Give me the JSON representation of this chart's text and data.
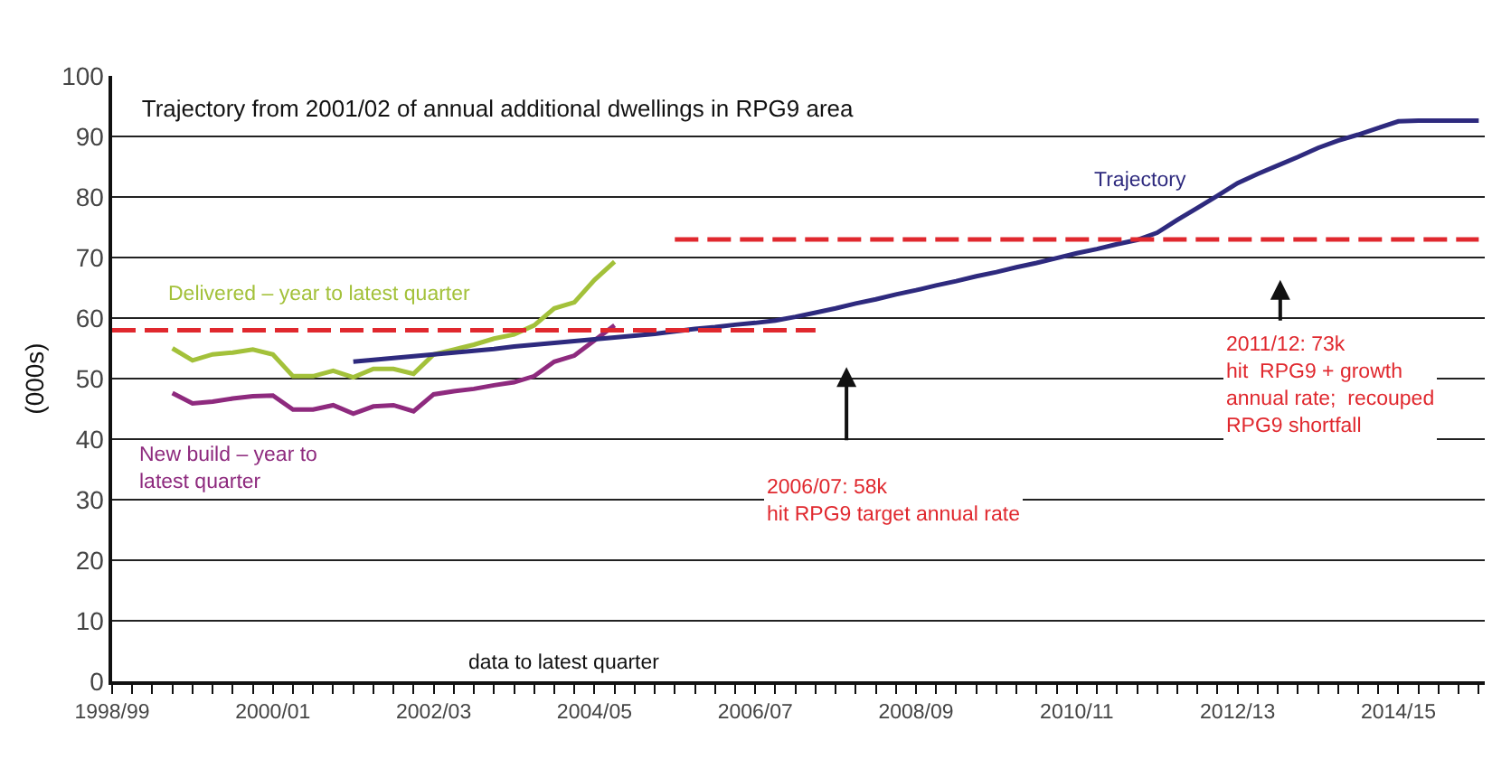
{
  "chart_data": {
    "type": "line",
    "title": "Trajectory from 2001/02 of annual additional dwellings in RPG9 area",
    "ylabel": "(000s)",
    "categories": [
      "1998/99",
      null,
      null,
      null,
      null,
      null,
      null,
      null,
      "2000/01",
      null,
      null,
      null,
      null,
      null,
      null,
      null,
      "2002/03",
      null,
      null,
      null,
      null,
      null,
      null,
      null,
      "2004/05",
      null,
      null,
      null,
      null,
      null,
      null,
      null,
      "2006/07",
      null,
      null,
      null,
      null,
      null,
      null,
      null,
      "2008/09",
      null,
      null,
      null,
      null,
      null,
      null,
      null,
      "2010/11",
      null,
      null,
      null,
      null,
      null,
      null,
      null,
      "2012/13",
      null,
      null,
      null,
      null,
      null,
      null,
      null,
      "2014/15",
      null,
      null,
      null,
      null
    ],
    "ylim": [
      0,
      100
    ],
    "yticks": [
      0,
      10,
      20,
      30,
      40,
      50,
      60,
      70,
      80,
      90,
      100
    ],
    "grid": "y",
    "legend": false,
    "marker": "none",
    "line_style": "solid",
    "series": [
      {
        "name": "Delivered – year to latest quarter",
        "color": "#a3c13a",
        "values": [
          null,
          null,
          null,
          55.0,
          53.0,
          54.0,
          54.3,
          54.8,
          54.0,
          50.4,
          50.4,
          51.3,
          50.2,
          51.6,
          51.6,
          50.8,
          54.0,
          54.8,
          55.6,
          56.6,
          57.3,
          58.8,
          61.6,
          62.6,
          66.3,
          69.3,
          null,
          null,
          null,
          null,
          null,
          null,
          null,
          null,
          null,
          null,
          null,
          null,
          null,
          null,
          null,
          null,
          null,
          null,
          null,
          null,
          null,
          null,
          null,
          null,
          null,
          null,
          null,
          null,
          null,
          null,
          null,
          null,
          null,
          null,
          null,
          null,
          null,
          null,
          null,
          null,
          null,
          null,
          null
        ]
      },
      {
        "name": "New build – year to\nlatest quarter",
        "color": "#8e2a7e",
        "values": [
          null,
          null,
          null,
          47.6,
          45.9,
          46.2,
          46.7,
          47.1,
          47.2,
          44.9,
          44.9,
          45.6,
          44.2,
          45.4,
          45.6,
          44.6,
          47.4,
          47.9,
          48.3,
          48.9,
          49.4,
          50.4,
          52.8,
          53.8,
          56.3,
          58.8,
          null,
          null,
          null,
          null,
          null,
          null,
          null,
          null,
          null,
          null,
          null,
          null,
          null,
          null,
          null,
          null,
          null,
          null,
          null,
          null,
          null,
          null,
          null,
          null,
          null,
          null,
          null,
          null,
          null,
          null,
          null,
          null,
          null,
          null,
          null,
          null,
          null,
          null,
          null,
          null,
          null,
          null,
          null
        ]
      },
      {
        "name": "Trajectory",
        "color": "#2e2a7e",
        "values": [
          null,
          null,
          null,
          null,
          null,
          null,
          null,
          null,
          null,
          null,
          null,
          null,
          52.8,
          53.1,
          53.4,
          53.7,
          54.0,
          54.3,
          54.6,
          54.9,
          55.3,
          55.6,
          55.9,
          56.2,
          56.5,
          56.8,
          57.1,
          57.4,
          57.8,
          58.2,
          58.5,
          58.9,
          59.2,
          59.6,
          60.2,
          60.9,
          61.6,
          62.4,
          63.1,
          63.9,
          64.6,
          65.4,
          66.1,
          66.9,
          67.6,
          68.4,
          69.1,
          69.9,
          70.7,
          71.4,
          72.2,
          72.9,
          74.1,
          76.2,
          78.2,
          80.2,
          82.3,
          83.8,
          85.2,
          86.6,
          88.1,
          89.3,
          90.3,
          91.4,
          92.5,
          92.6,
          92.6,
          92.6,
          92.6
        ]
      },
      {
        "color": "#e0282e",
        "line_style": "dashed",
        "values": [
          58,
          58,
          58,
          58,
          58,
          58,
          58,
          58,
          58,
          58,
          58,
          58,
          58,
          58,
          58,
          58,
          58,
          58,
          58,
          58,
          58,
          58,
          58,
          58,
          58,
          58,
          58,
          58,
          58,
          58,
          58,
          58,
          58,
          58,
          58,
          58,
          null,
          null,
          null,
          null,
          null,
          null,
          null,
          null,
          null,
          null,
          null,
          null,
          null,
          null,
          null,
          null,
          null,
          null,
          null,
          null,
          null,
          null,
          null,
          null,
          null,
          null,
          null,
          null,
          null,
          null,
          null,
          null,
          null
        ]
      },
      {
        "color": "#e0282e",
        "line_style": "dashed",
        "values": [
          null,
          null,
          null,
          null,
          null,
          null,
          null,
          null,
          null,
          null,
          null,
          null,
          null,
          null,
          null,
          null,
          null,
          null,
          null,
          null,
          null,
          null,
          null,
          null,
          null,
          null,
          null,
          null,
          73,
          73,
          73,
          73,
          73,
          73,
          73,
          73,
          73,
          73,
          73,
          73,
          73,
          73,
          73,
          73,
          73,
          73,
          73,
          73,
          73,
          73,
          73,
          73,
          73,
          73,
          73,
          73,
          73,
          73,
          73,
          73,
          73,
          73,
          73,
          73,
          73,
          73,
          73,
          73,
          73
        ]
      }
    ],
    "annotations": [
      "2006/07: 58k\nhit RPG9 target annual rate",
      "2011/12: 73k\nhit  RPG9 + growth\nannual rate;  recouped\nRPG9 shortfall",
      "data to latest quarter"
    ]
  }
}
